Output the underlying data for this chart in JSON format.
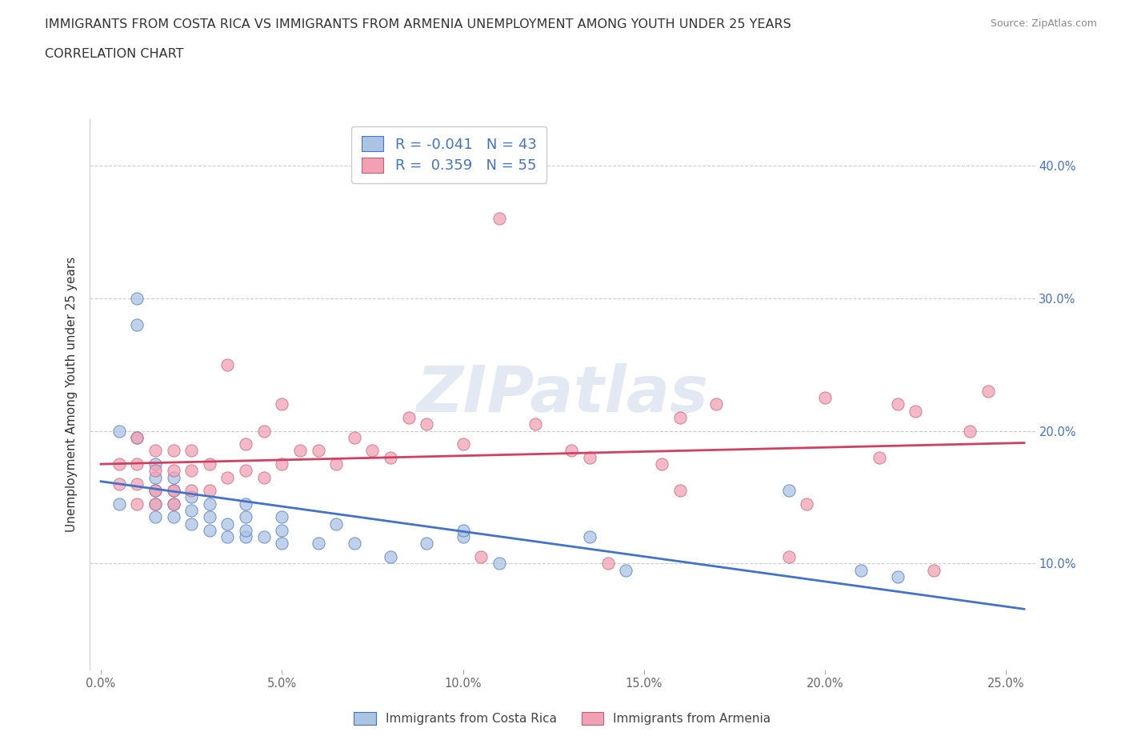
{
  "title_line1": "IMMIGRANTS FROM COSTA RICA VS IMMIGRANTS FROM ARMENIA UNEMPLOYMENT AMONG YOUTH UNDER 25 YEARS",
  "title_line2": "CORRELATION CHART",
  "source": "Source: ZipAtlas.com",
  "ylabel": "Unemployment Among Youth under 25 years",
  "xlim": [
    -0.003,
    0.258
  ],
  "ylim": [
    0.02,
    0.435
  ],
  "costa_rica_R": -0.041,
  "costa_rica_N": 43,
  "armenia_R": 0.359,
  "armenia_N": 55,
  "color_costa_rica": "#aac4e2",
  "color_armenia": "#f2a0b5",
  "trend_color_costa_rica": "#4472c4",
  "trend_color_armenia": "#d04060",
  "watermark_text": "ZIPatlas",
  "costa_rica_x": [
    0.005,
    0.005,
    0.01,
    0.01,
    0.01,
    0.015,
    0.015,
    0.015,
    0.015,
    0.015,
    0.02,
    0.02,
    0.02,
    0.02,
    0.025,
    0.025,
    0.025,
    0.03,
    0.03,
    0.03,
    0.035,
    0.035,
    0.04,
    0.04,
    0.04,
    0.04,
    0.045,
    0.05,
    0.05,
    0.05,
    0.06,
    0.065,
    0.07,
    0.08,
    0.09,
    0.1,
    0.1,
    0.11,
    0.135,
    0.145,
    0.19,
    0.21,
    0.22
  ],
  "costa_rica_y": [
    0.145,
    0.2,
    0.195,
    0.28,
    0.3,
    0.135,
    0.145,
    0.155,
    0.165,
    0.175,
    0.135,
    0.145,
    0.155,
    0.165,
    0.13,
    0.14,
    0.15,
    0.125,
    0.135,
    0.145,
    0.12,
    0.13,
    0.12,
    0.125,
    0.135,
    0.145,
    0.12,
    0.115,
    0.125,
    0.135,
    0.115,
    0.13,
    0.115,
    0.105,
    0.115,
    0.12,
    0.125,
    0.1,
    0.12,
    0.095,
    0.155,
    0.095,
    0.09
  ],
  "armenia_x": [
    0.005,
    0.005,
    0.01,
    0.01,
    0.01,
    0.01,
    0.015,
    0.015,
    0.015,
    0.015,
    0.02,
    0.02,
    0.02,
    0.02,
    0.025,
    0.025,
    0.025,
    0.03,
    0.03,
    0.035,
    0.035,
    0.04,
    0.04,
    0.045,
    0.045,
    0.05,
    0.05,
    0.055,
    0.06,
    0.065,
    0.07,
    0.075,
    0.08,
    0.085,
    0.09,
    0.1,
    0.105,
    0.11,
    0.12,
    0.13,
    0.135,
    0.14,
    0.155,
    0.16,
    0.16,
    0.17,
    0.19,
    0.195,
    0.2,
    0.215,
    0.22,
    0.225,
    0.23,
    0.24,
    0.245
  ],
  "armenia_y": [
    0.16,
    0.175,
    0.145,
    0.16,
    0.175,
    0.195,
    0.145,
    0.155,
    0.17,
    0.185,
    0.145,
    0.155,
    0.17,
    0.185,
    0.155,
    0.17,
    0.185,
    0.155,
    0.175,
    0.165,
    0.25,
    0.17,
    0.19,
    0.165,
    0.2,
    0.175,
    0.22,
    0.185,
    0.185,
    0.175,
    0.195,
    0.185,
    0.18,
    0.21,
    0.205,
    0.19,
    0.105,
    0.36,
    0.205,
    0.185,
    0.18,
    0.1,
    0.175,
    0.155,
    0.21,
    0.22,
    0.105,
    0.145,
    0.225,
    0.18,
    0.22,
    0.215,
    0.095,
    0.2,
    0.23
  ]
}
